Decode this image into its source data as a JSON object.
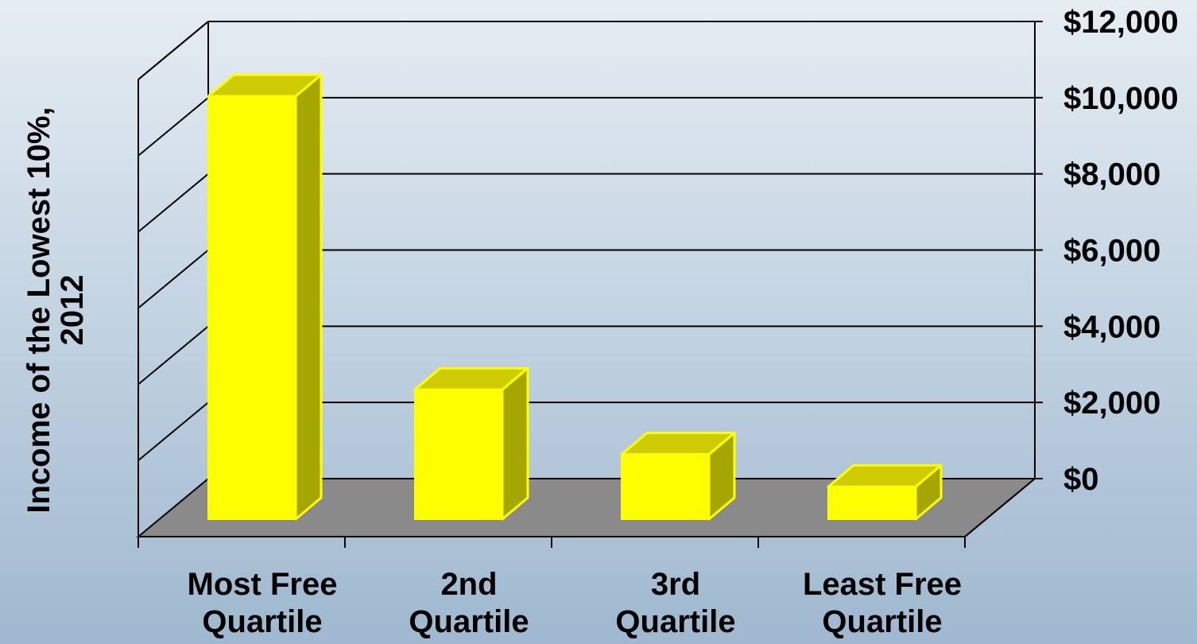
{
  "chart_data": {
    "type": "bar",
    "title": "",
    "categories": [
      [
        "Most Free",
        "Quartile"
      ],
      [
        "2nd",
        "Quartile"
      ],
      [
        "3rd",
        "Quartile"
      ],
      [
        "Least Free",
        "Quartile"
      ]
    ],
    "values": [
      11100,
      3400,
      1700,
      850
    ],
    "ylabel": [
      "Income of the Lowest 10%,",
      "2012"
    ],
    "xlabel": "",
    "ylim": [
      0,
      12000
    ],
    "yticks": [
      0,
      2000,
      4000,
      6000,
      8000,
      10000,
      12000
    ],
    "ytick_labels": [
      "$0",
      "$2,000",
      "$4,000",
      "$6,000",
      "$8,000",
      "$10,000",
      "$12,000"
    ],
    "y_axis_side": "right",
    "style": "3d",
    "grid": true,
    "colors": {
      "bar_front": "#ffff00",
      "bar_top": "#cccc00",
      "bar_side": "#a6a600",
      "floor": "#8a8a8a",
      "gridline": "#000000"
    }
  }
}
